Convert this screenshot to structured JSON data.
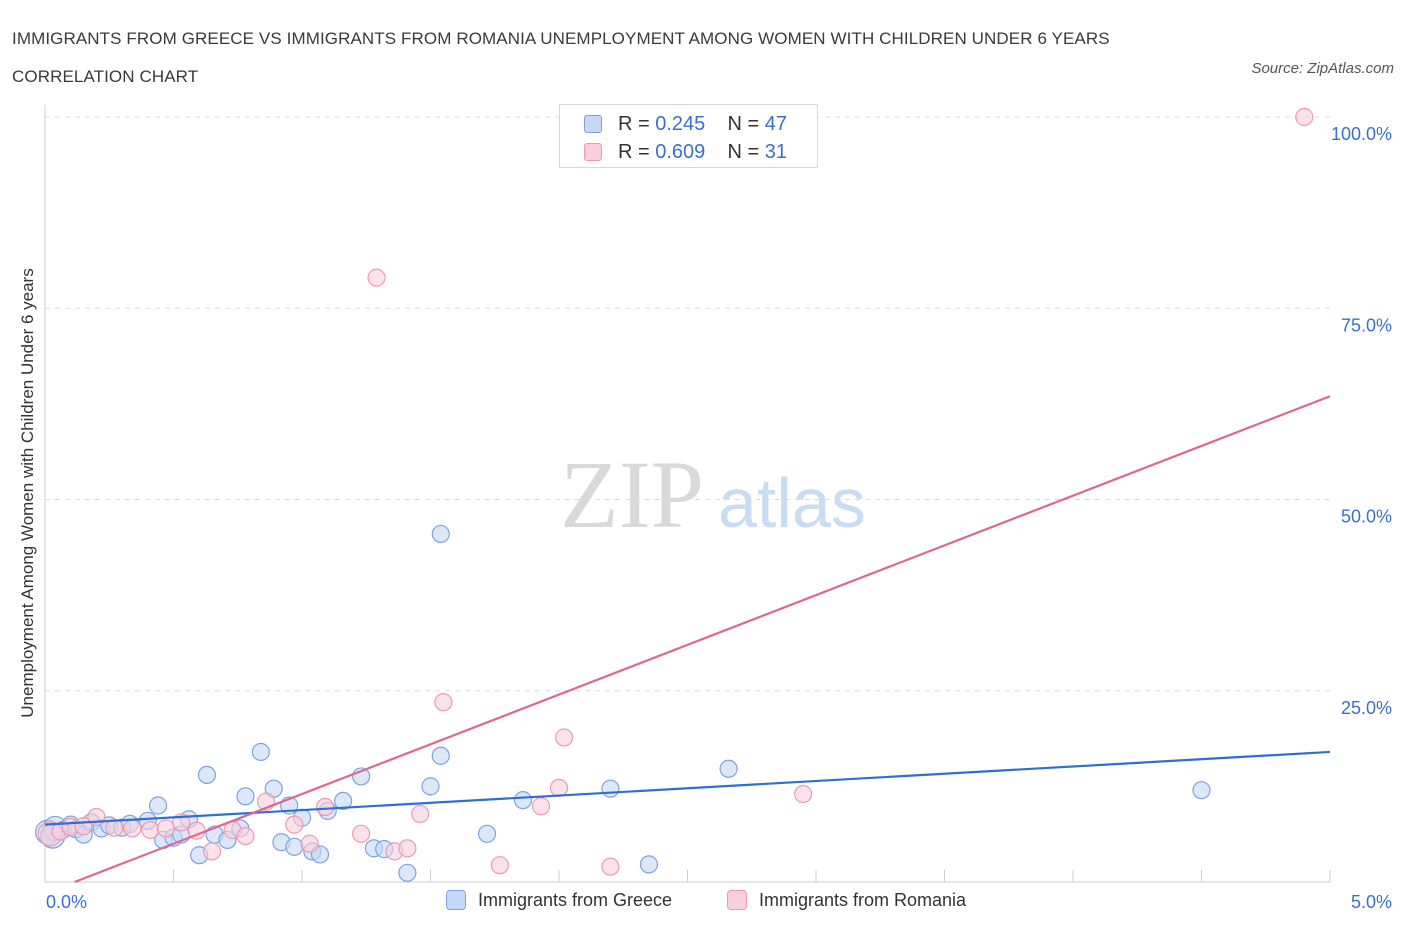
{
  "header": {
    "title": "IMMIGRANTS FROM GREECE VS IMMIGRANTS FROM ROMANIA UNEMPLOYMENT AMONG WOMEN WITH CHILDREN UNDER 6 YEARS CORRELATION CHART",
    "source": "Source: ZipAtlas.com"
  },
  "watermark": {
    "zip": "ZIP",
    "atlas": "atlas"
  },
  "legend_top": {
    "rows": [
      {
        "r_label": "R =",
        "r_value": "0.245",
        "n_label": "N =",
        "n_value": "47"
      },
      {
        "r_label": "R =",
        "r_value": "0.609",
        "n_label": "N =",
        "n_value": "31"
      }
    ]
  },
  "chart_data": {
    "type": "scatter",
    "title": "IMMIGRANTS FROM GREECE VS IMMIGRANTS FROM ROMANIA UNEMPLOYMENT AMONG WOMEN WITH CHILDREN UNDER 6 YEARS CORRELATION CHART",
    "xlabel": "",
    "ylabel": "Unemployment Among Women with Children Under 6 years",
    "xlim": [
      0,
      5
    ],
    "ylim": [
      0,
      100
    ],
    "x_tick_labels": [
      "0.0%",
      "5.0%"
    ],
    "y_tick_labels": [
      "25.0%",
      "50.0%",
      "75.0%",
      "100.0%"
    ],
    "y_ticks": [
      25,
      50,
      75,
      100
    ],
    "grid": true,
    "legend_position": "bottom-center",
    "colors": {
      "greece_fill": "#c5d9f7",
      "greece_stroke": "#7ba3e0",
      "greece_line": "#2f6fd0",
      "romania_fill": "#f9cfdc",
      "romania_stroke": "#ec9ab3",
      "romania_line": "#e0668e",
      "axis_text": "#3a6fd1",
      "grid": "#dcdcdc",
      "watermark_zip": "#d9d9d9",
      "watermark_atlas": "#c9dcf3"
    },
    "series": [
      {
        "name": "Immigrants from Greece",
        "r": 0.245,
        "n": 47,
        "trend": {
          "x": [
            0.0,
            5.0
          ],
          "y": [
            7.5,
            17.0
          ]
        },
        "points": [
          {
            "x": 0.01,
            "y": 6.5
          },
          {
            "x": 0.04,
            "y": 7.0
          },
          {
            "x": 0.07,
            "y": 6.8
          },
          {
            "x": 0.1,
            "y": 7.5
          },
          {
            "x": 0.12,
            "y": 6.9
          },
          {
            "x": 0.15,
            "y": 6.2
          },
          {
            "x": 0.18,
            "y": 7.8
          },
          {
            "x": 0.22,
            "y": 7.0
          },
          {
            "x": 0.25,
            "y": 7.4
          },
          {
            "x": 0.3,
            "y": 7.1
          },
          {
            "x": 0.33,
            "y": 7.6
          },
          {
            "x": 0.4,
            "y": 8.0
          },
          {
            "x": 0.44,
            "y": 10.0
          },
          {
            "x": 0.46,
            "y": 5.5
          },
          {
            "x": 0.5,
            "y": 5.8
          },
          {
            "x": 0.53,
            "y": 6.2
          },
          {
            "x": 0.56,
            "y": 8.2
          },
          {
            "x": 0.6,
            "y": 3.5
          },
          {
            "x": 0.63,
            "y": 14.0
          },
          {
            "x": 0.66,
            "y": 6.2
          },
          {
            "x": 0.71,
            "y": 5.5
          },
          {
            "x": 0.76,
            "y": 7.0
          },
          {
            "x": 0.78,
            "y": 11.2
          },
          {
            "x": 0.84,
            "y": 17.0
          },
          {
            "x": 0.89,
            "y": 12.2
          },
          {
            "x": 0.92,
            "y": 5.2
          },
          {
            "x": 0.95,
            "y": 10.0
          },
          {
            "x": 0.97,
            "y": 4.6
          },
          {
            "x": 1.0,
            "y": 8.4
          },
          {
            "x": 1.04,
            "y": 4.0
          },
          {
            "x": 1.07,
            "y": 3.6
          },
          {
            "x": 1.1,
            "y": 9.3
          },
          {
            "x": 1.16,
            "y": 10.6
          },
          {
            "x": 1.23,
            "y": 13.8
          },
          {
            "x": 1.28,
            "y": 4.4
          },
          {
            "x": 1.32,
            "y": 4.3
          },
          {
            "x": 1.41,
            "y": 1.2
          },
          {
            "x": 1.5,
            "y": 12.5
          },
          {
            "x": 1.54,
            "y": 16.5
          },
          {
            "x": 1.54,
            "y": 45.5
          },
          {
            "x": 1.72,
            "y": 6.3
          },
          {
            "x": 1.86,
            "y": 10.7
          },
          {
            "x": 2.2,
            "y": 12.2
          },
          {
            "x": 2.35,
            "y": 2.3
          },
          {
            "x": 2.66,
            "y": 14.8
          },
          {
            "x": 4.5,
            "y": 12.0
          },
          {
            "x": 0.03,
            "y": 6.0
          }
        ]
      },
      {
        "name": "Immigrants from Romania",
        "r": 0.609,
        "n": 31,
        "trend": {
          "x": [
            0.0,
            5.0
          ],
          "y": [
            -1.5,
            63.5
          ]
        },
        "points": [
          {
            "x": 0.02,
            "y": 6.3
          },
          {
            "x": 0.06,
            "y": 6.6
          },
          {
            "x": 0.1,
            "y": 7.2
          },
          {
            "x": 0.15,
            "y": 7.3
          },
          {
            "x": 0.2,
            "y": 8.5
          },
          {
            "x": 0.27,
            "y": 7.1
          },
          {
            "x": 0.34,
            "y": 7.0
          },
          {
            "x": 0.41,
            "y": 6.8
          },
          {
            "x": 0.47,
            "y": 7.0
          },
          {
            "x": 0.53,
            "y": 7.8
          },
          {
            "x": 0.59,
            "y": 6.7
          },
          {
            "x": 0.65,
            "y": 4.0
          },
          {
            "x": 0.73,
            "y": 6.8
          },
          {
            "x": 0.78,
            "y": 6.0
          },
          {
            "x": 0.86,
            "y": 10.5
          },
          {
            "x": 0.97,
            "y": 7.5
          },
          {
            "x": 1.03,
            "y": 5.0
          },
          {
            "x": 1.09,
            "y": 9.8
          },
          {
            "x": 1.23,
            "y": 6.3
          },
          {
            "x": 1.29,
            "y": 79.0
          },
          {
            "x": 1.36,
            "y": 4.0
          },
          {
            "x": 1.41,
            "y": 4.4
          },
          {
            "x": 1.46,
            "y": 8.9
          },
          {
            "x": 1.55,
            "y": 23.5
          },
          {
            "x": 1.77,
            "y": 2.2
          },
          {
            "x": 1.93,
            "y": 9.9
          },
          {
            "x": 2.0,
            "y": 12.3
          },
          {
            "x": 2.02,
            "y": 18.9
          },
          {
            "x": 2.2,
            "y": 2.0
          },
          {
            "x": 2.95,
            "y": 11.5
          },
          {
            "x": 4.9,
            "y": 100.0
          }
        ]
      }
    ]
  }
}
